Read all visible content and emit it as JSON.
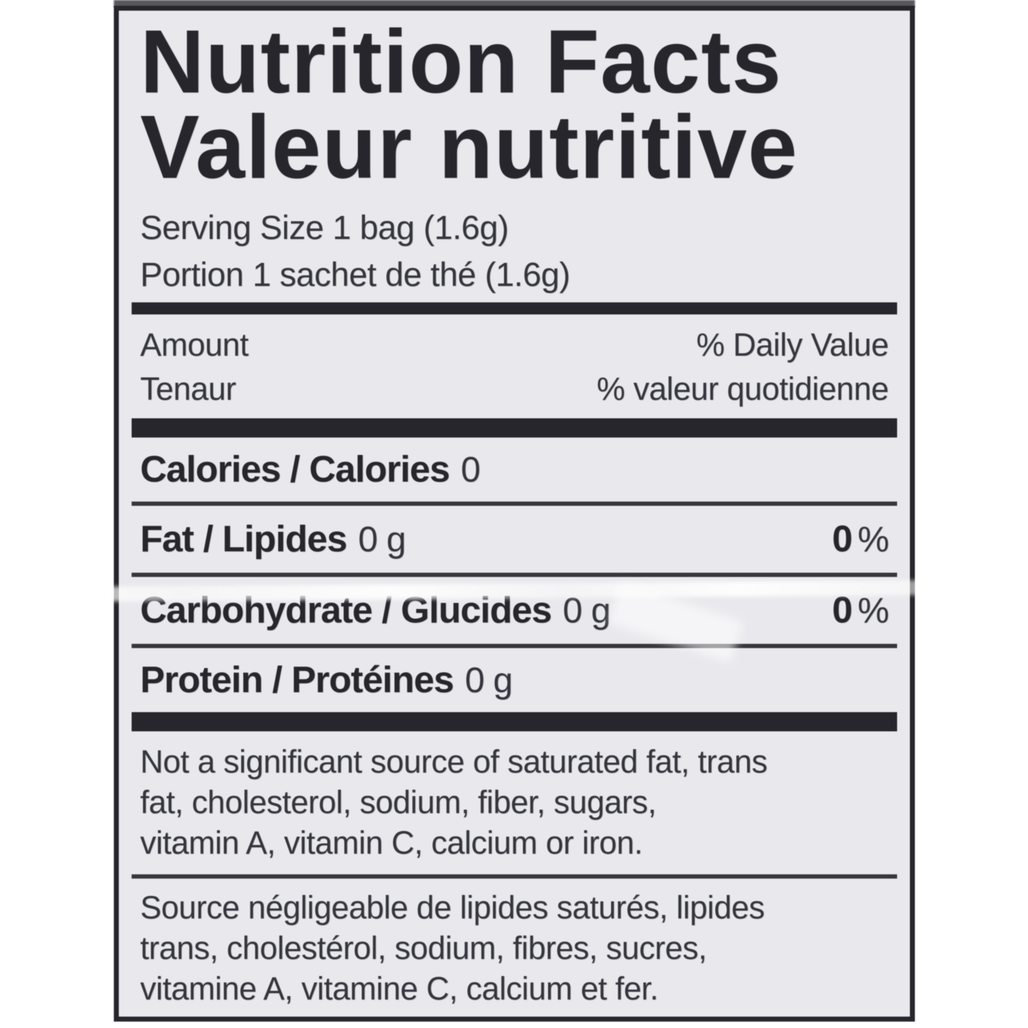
{
  "label": {
    "title_en": "Nutrition Facts",
    "title_fr": "Valeur nutritive",
    "serving_size_en": "Serving Size 1 bag (1.6g)",
    "serving_size_fr": "Portion 1 sachet de thé (1.6g)",
    "column_header": {
      "amount_en": "Amount",
      "amount_fr": "Tenaur",
      "daily_value_en": "% Daily Value",
      "daily_value_fr": "% valeur quotidienne"
    },
    "nutrients": [
      {
        "name": "Calories / Calories",
        "amount": "0"
      },
      {
        "name": "Fat / Lipides",
        "amount": "0 g",
        "daily_value": "0",
        "percent_sign": "%"
      },
      {
        "name": "Carbohydrate / Glucides",
        "amount": "0 g",
        "daily_value": "0",
        "percent_sign": "%"
      },
      {
        "name": "Protein / Protéines",
        "amount": "0 g"
      }
    ],
    "footnote_en": {
      "line1": "Not a significant source of saturated fat, trans",
      "line2": "fat, cholesterol, sodium, fiber, sugars,",
      "line3": "vitamin A, vitamin C, calcium or iron."
    },
    "footnote_fr": {
      "line1": "Source négligeable de lipides saturés, lipides",
      "line2": "trans, cholestérol, sodium, fibres, sucres,",
      "line3": "vitamine A, vitamine C, calcium et fer."
    }
  },
  "colors": {
    "ink": "#26262c",
    "body-ink": "#35353d",
    "label-bg": "#e9e9ed",
    "page-bg": "#ffffff"
  }
}
